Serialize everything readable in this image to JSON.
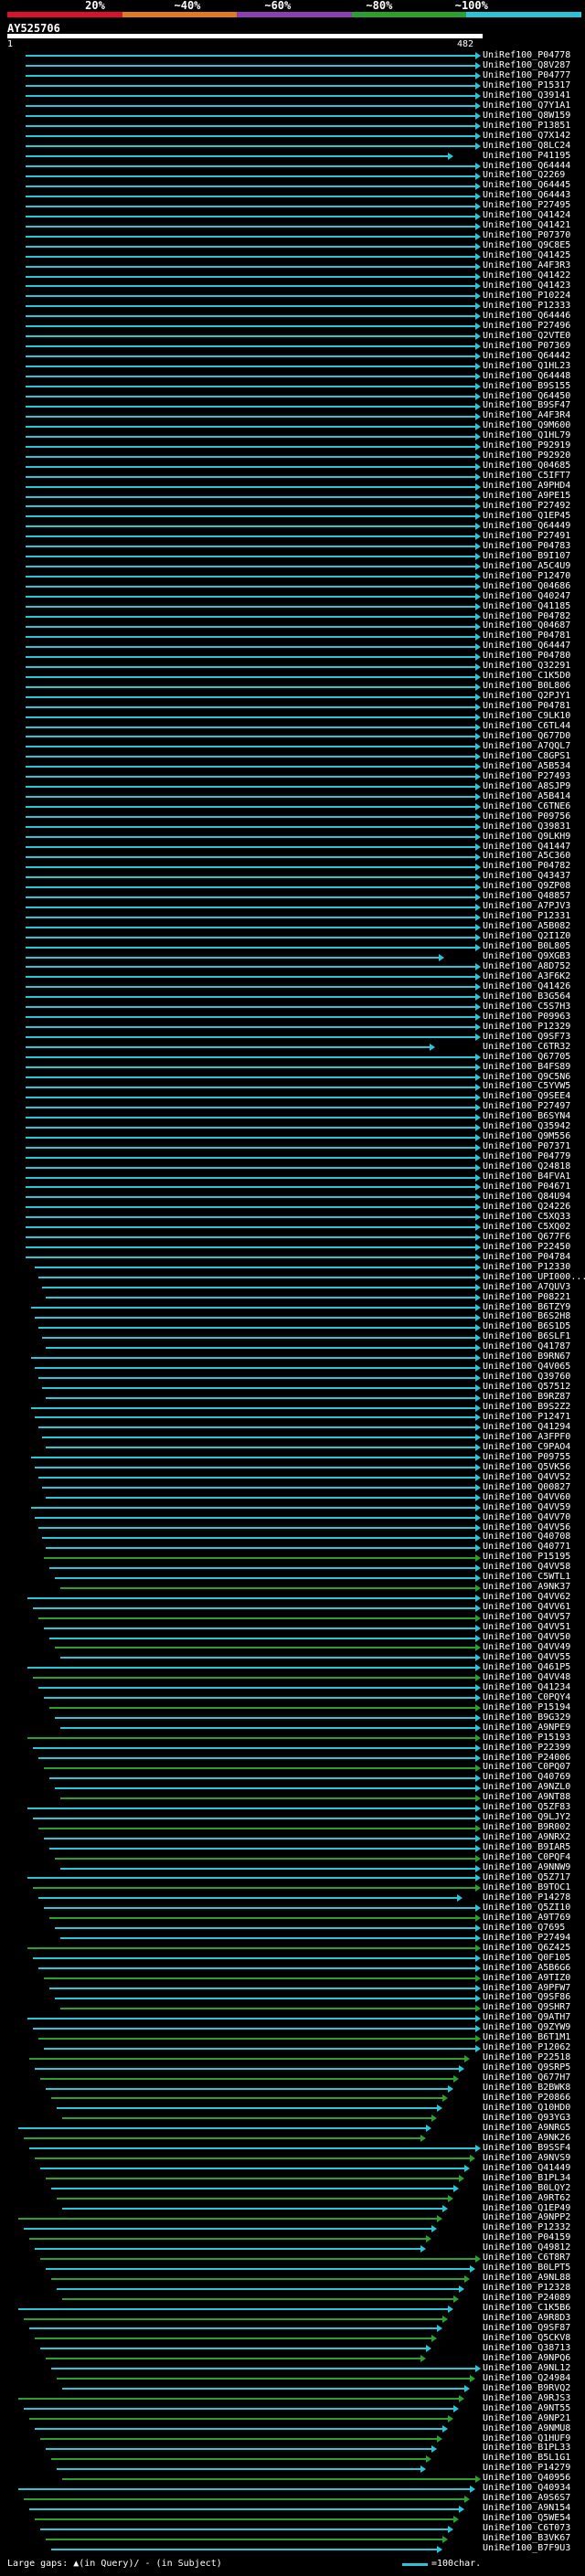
{
  "legend": [
    {
      "label": "20%",
      "color": "#d8122a"
    },
    {
      "label": "~40%",
      "color": "#e07a1d"
    },
    {
      "label": "~60%",
      "color": "#8b3fb0"
    },
    {
      "label": "~80%",
      "color": "#2aa12a"
    },
    {
      "label": "~100%",
      "color": "#26c6d9"
    }
  ],
  "query": {
    "name": "AY525706",
    "start": "1",
    "end": "482"
  },
  "colors": {
    "cyan": "#26c6d9",
    "green": "#2aa12a",
    "olive": "#6b6b1a"
  },
  "hits": [
    "UniRef100_P04778",
    "UniRef100_Q8V287",
    "UniRef100_P04777",
    "UniRef100_P15317",
    "UniRef100_Q39141",
    "UniRef100_Q7Y1A1",
    "UniRef100_Q8W159",
    "UniRef100_P13851",
    "UniRef100_Q7X142",
    "UniRef100_Q8LC24",
    "UniRef100_P41195",
    "UniRef100_Q64444",
    "UniRef100_Q2269",
    "UniRef100_Q64445",
    "UniRef100_Q64443",
    "UniRef100_P27495",
    "UniRef100_Q41424",
    "UniRef100_Q41421",
    "UniRef100_P07370",
    "UniRef100_Q9C8E5",
    "UniRef100_Q41425",
    "UniRef100_A4F3R3",
    "UniRef100_Q41422",
    "UniRef100_Q41423",
    "UniRef100_P10224",
    "UniRef100_P12333",
    "UniRef100_Q64446",
    "UniRef100_P27496",
    "UniRef100_Q2VTE0",
    "UniRef100_P07369",
    "UniRef100_Q64442",
    "UniRef100_Q1HL23",
    "UniRef100_Q64448",
    "UniRef100_B9S155",
    "UniRef100_Q64450",
    "UniRef100_B9SF47",
    "UniRef100_A4F3R4",
    "UniRef100_Q9M600",
    "UniRef100_Q1HL79",
    "UniRef100_P92919",
    "UniRef100_P92920",
    "UniRef100_Q04685",
    "UniRef100_C5IFT7",
    "UniRef100_A9PHD4",
    "UniRef100_A9PE15",
    "UniRef100_P27492",
    "UniRef100_Q1EP45",
    "UniRef100_Q64449",
    "UniRef100_P27491",
    "UniRef100_P04783",
    "UniRef100_B9I107",
    "UniRef100_A5C4U9",
    "UniRef100_P12470",
    "UniRef100_Q04686",
    "UniRef100_Q40247",
    "UniRef100_Q41185",
    "UniRef100_P04782",
    "UniRef100_Q04687",
    "UniRef100_P04781",
    "UniRef100_Q64447",
    "UniRef100_P04780",
    "UniRef100_Q32291",
    "UniRef100_C1K5D0",
    "UniRef100_B0L806",
    "UniRef100_Q2PJY1",
    "UniRef100_P04781",
    "UniRef100_C9LK10",
    "UniRef100_C6TL44",
    "UniRef100_Q677D0",
    "UniRef100_A7QQL7",
    "UniRef100_C8GPS1",
    "UniRef100_A5B534",
    "UniRef100_P27493",
    "UniRef100_A8SJP9",
    "UniRef100_A5B414",
    "UniRef100_C6TNE6",
    "UniRef100_P09756",
    "UniRef100_Q39831",
    "UniRef100_Q9LKH9",
    "UniRef100_Q41447",
    "UniRef100_A5C360",
    "UniRef100_P04782",
    "UniRef100_Q43437",
    "UniRef100_Q9ZP08",
    "UniRef100_Q48857",
    "UniRef100_A7PJV3",
    "UniRef100_P12331",
    "UniRef100_A5B082",
    "UniRef100_Q2I1Z0",
    "UniRef100_B0L805",
    "UniRef100_Q9XGB3",
    "UniRef100_A8D752",
    "UniRef100_A3F6K2",
    "UniRef100_Q41426",
    "UniRef100_B3G564",
    "UniRef100_C5S7H3",
    "UniRef100_P09963",
    "UniRef100_P12329",
    "UniRef100_Q9SF73",
    "UniRef100_C6TR32",
    "UniRef100_Q67705",
    "UniRef100_B4FS89",
    "UniRef100_Q9C5N6",
    "UniRef100_C5YVW5",
    "UniRef100_Q9SEE4",
    "UniRef100_P27497",
    "UniRef100_B6SYN4",
    "UniRef100_Q35942",
    "UniRef100_Q9M556",
    "UniRef100_P07371",
    "UniRef100_P04779",
    "UniRef100_Q24818",
    "UniRef100_B4FVA1",
    "UniRef100_P04671",
    "UniRef100_Q84U94",
    "UniRef100_Q24226",
    "UniRef100_C5XQ33",
    "UniRef100_C5XQ02",
    "UniRef100_Q677F6",
    "UniRef100_P22450",
    "UniRef100_P04784",
    "UniRef100_P12330",
    "UniRef100_UPI000...",
    "UniRef100_A7QUV3",
    "UniRef100_P08221",
    "UniRef100_B6TZY9",
    "UniRef100_B6S2H8",
    "UniRef100_B6S1D5",
    "UniRef100_B6SLF1",
    "UniRef100_Q41787",
    "UniRef100_B9RN67",
    "UniRef100_Q4V065",
    "UniRef100_Q39760",
    "UniRef100_Q57512",
    "UniRef100_B9RZ87",
    "UniRef100_B9S2Z2",
    "UniRef100_P12471",
    "UniRef100_Q41294",
    "UniRef100_A3FPF0",
    "UniRef100_C9PAO4",
    "UniRef100_P09755",
    "UniRef100_Q5VK56",
    "UniRef100_Q4VV52",
    "UniRef100_Q00827",
    "UniRef100_Q4VV60",
    "UniRef100_Q4VV59",
    "UniRef100_Q4VV70",
    "UniRef100_Q4VV56",
    "UniRef100_Q40708",
    "UniRef100_Q40771",
    "UniRef100_P15195",
    "UniRef100_Q4VV58",
    "UniRef100_C5WTL1",
    "UniRef100_A9NK37",
    "UniRef100_Q4VV62",
    "UniRef100_Q4VV61",
    "UniRef100_Q4VV57",
    "UniRef100_Q4VV51",
    "UniRef100_Q4VV50",
    "UniRef100_Q4VV49",
    "UniRef100_Q4VV55",
    "UniRef100_Q461P5",
    "UniRef100_Q4VV48",
    "UniRef100_Q41234",
    "UniRef100_C0PQY4",
    "UniRef100_P15194",
    "UniRef100_B9G329",
    "UniRef100_A9NPE9",
    "UniRef100_P15193",
    "UniRef100_P22399",
    "UniRef100_P24006",
    "UniRef100_C0PQ07",
    "UniRef100_Q40769",
    "UniRef100_A9NZL0",
    "UniRef100_A9NT88",
    "UniRef100_Q5ZF83",
    "UniRef100_Q9LJY2",
    "UniRef100_B9R002",
    "UniRef100_A9NRX2",
    "UniRef100_B9IAR5",
    "UniRef100_C0PQF4",
    "UniRef100_A9NNW9",
    "UniRef100_Q5Z717",
    "UniRef100_B9TOC1",
    "UniRef100_P14278",
    "UniRef100_Q5ZI10",
    "UniRef100_A9T769",
    "UniRef100_Q7695",
    "UniRef100_P27494",
    "UniRef100_Q6Z425",
    "UniRef100_Q0F105",
    "UniRef100_A5B6G6",
    "UniRef100_A9TIZ0",
    "UniRef100_A9PFW7",
    "UniRef100_Q9SF86",
    "UniRef100_Q9SHR7",
    "UniRef100_Q9ATH7",
    "UniRef100_Q9ZYW9",
    "UniRef100_B6T1M1",
    "UniRef100_P12062",
    "UniRef100_P22518",
    "UniRef100_Q9SRP5",
    "UniRef100_Q677H7",
    "UniRef100_B2BWK8",
    "UniRef100_P20866",
    "UniRef100_Q10HD0",
    "UniRef100_Q93YG3",
    "UniRef100_A9NRG5",
    "UniRef100_A9NK26",
    "UniRef100_B9SSF4",
    "UniRef100_A9NVS9",
    "UniRef100_Q41449",
    "UniRef100_B1PL34",
    "UniRef100_B0LQY2",
    "UniRef100_A9RT62",
    "UniRef100_Q1EP49",
    "UniRef100_A9NPP2",
    "UniRef100_P12332",
    "UniRef100_P04159",
    "UniRef100_Q49812",
    "UniRef100_C6T8R7",
    "UniRef100_B0LPT5",
    "UniRef100_A9NL88",
    "UniRef100_P12328",
    "UniRef100_P24089",
    "UniRef100_C1K5B6",
    "UniRef100_A9R8D3",
    "UniRef100_Q9SF87",
    "UniRef100_Q5CKV8",
    "UniRef100_Q38713",
    "UniRef100_A9NPQ6",
    "UniRef100_A9NL12",
    "UniRef100_Q24984",
    "UniRef100_B9RVQ2",
    "UniRef100_A9RJS3",
    "UniRef100_A9NT55",
    "UniRef100_A9NP21",
    "UniRef100_A9NMU8",
    "UniRef100_Q1HUF9",
    "UniRef100_B1PL33",
    "UniRef100_B5L1G1",
    "UniRef100_P14279",
    "UniRef100_Q40956",
    "UniRef100_Q40934",
    "UniRef100_A9S6S7",
    "UniRef100_A9N154",
    "UniRef100_Q5WE54",
    "UniRef100_C6T073",
    "UniRef100_B3VK67",
    "UniRef100_B7F9U3"
  ]
}
